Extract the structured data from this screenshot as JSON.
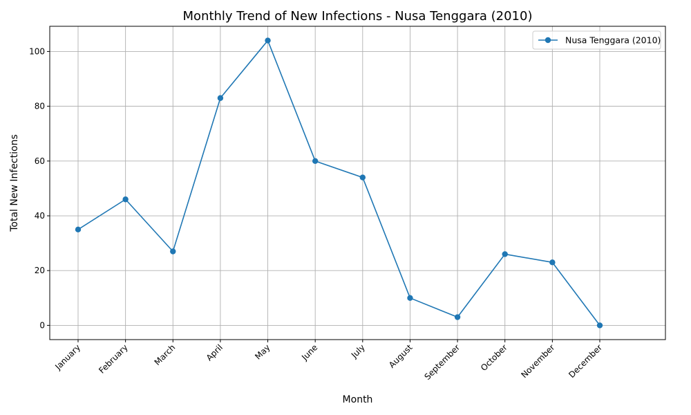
{
  "chart_data": {
    "type": "line",
    "title": "Monthly Trend of New Infections - Nusa Tenggara (2010)",
    "xlabel": "Month",
    "ylabel": "Total New Infections",
    "categories": [
      "January",
      "February",
      "March",
      "April",
      "May",
      "June",
      "July",
      "August",
      "September",
      "October",
      "November",
      "December"
    ],
    "series": [
      {
        "name": "Nusa Tenggara (2010)",
        "values": [
          35,
          46,
          27,
          83,
          104,
          60,
          54,
          10,
          3,
          26,
          23,
          0
        ],
        "color": "#1f77b4",
        "marker": "circle"
      }
    ],
    "ylim": [
      -5.2,
      109.2
    ],
    "yticks": [
      0,
      20,
      40,
      60,
      80,
      100
    ],
    "grid": true,
    "legend_position": "top-right"
  }
}
